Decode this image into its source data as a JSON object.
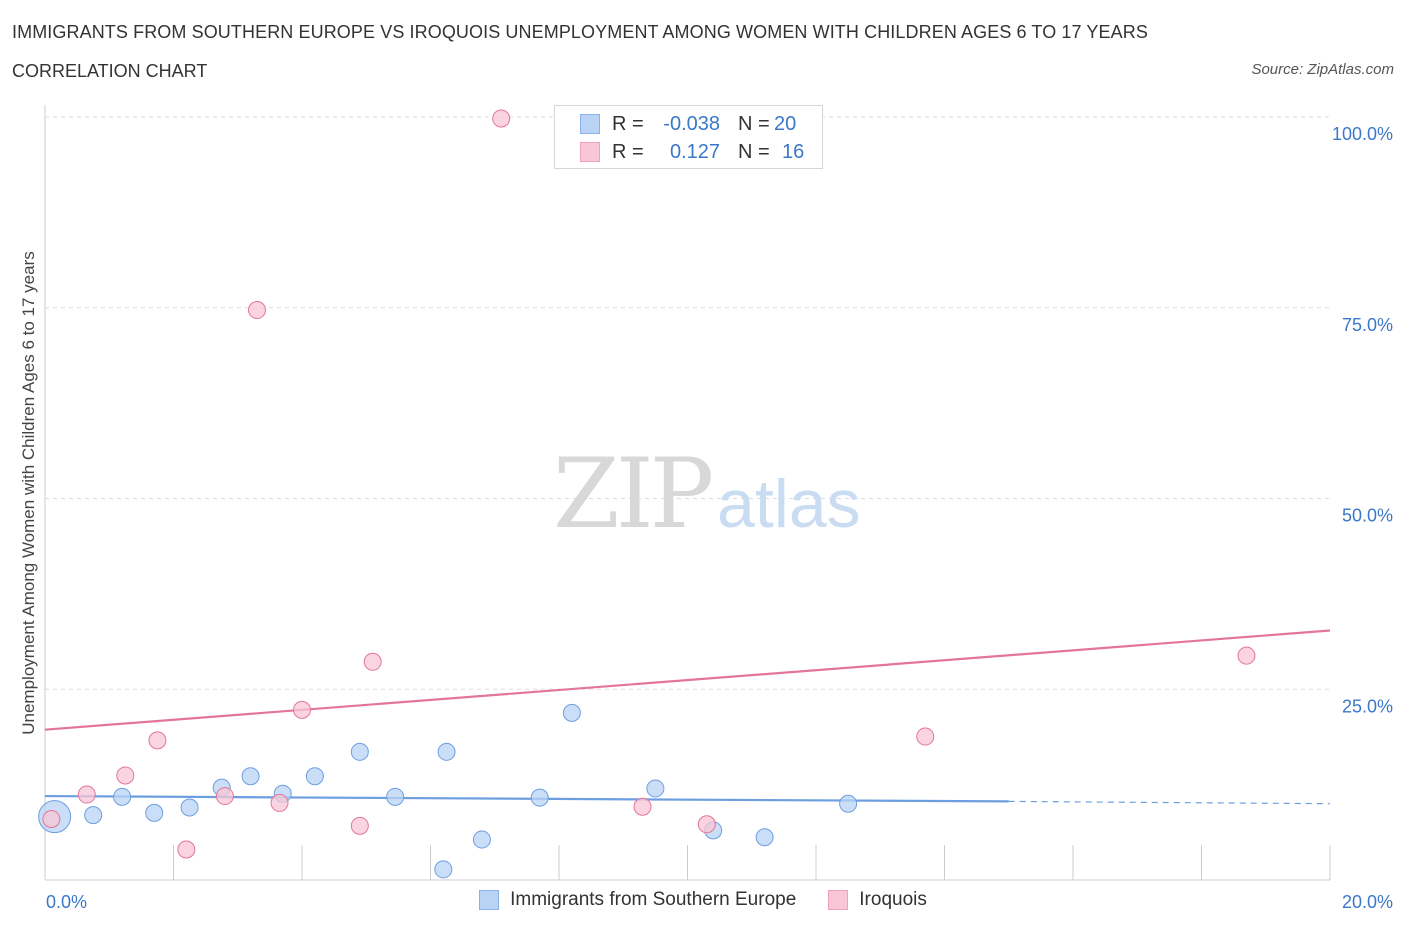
{
  "title": "IMMIGRANTS FROM SOUTHERN EUROPE VS IROQUOIS UNEMPLOYMENT AMONG WOMEN WITH CHILDREN AGES 6 TO 17 YEARS",
  "subtitle": "CORRELATION CHART",
  "source": "Source: ZipAtlas.com",
  "watermark": {
    "zip": "ZIP",
    "atlas": "atlas"
  },
  "legend": {
    "r_label": "R =",
    "n_label": "N =",
    "rows": [
      {
        "r": "-0.038",
        "n": "20",
        "fill": "#b9d3f5",
        "stroke": "#8ab0e6"
      },
      {
        "r": "0.127",
        "n": "16",
        "fill": "#f8c6d6",
        "stroke": "#eea3bb"
      }
    ]
  },
  "chart_data": {
    "type": "scatter",
    "title": "IMMIGRANTS FROM SOUTHERN EUROPE VS IROQUOIS UNEMPLOYMENT AMONG WOMEN WITH CHILDREN AGES 6 TO 17 YEARS",
    "xlabel": "",
    "ylabel": "Unemployment Among Women with Children Ages 6 to 17 years",
    "xlim": [
      0,
      20
    ],
    "ylim": [
      0,
      100
    ],
    "x_tick_labels": [
      "0.0%",
      "20.0%"
    ],
    "y_tick_labels": [
      "100.0%",
      "75.0%",
      "50.0%",
      "25.0%"
    ],
    "y_ticks": [
      100,
      75,
      50,
      25
    ],
    "grid": true,
    "legend_position": "bottom",
    "series": [
      {
        "name": "Immigrants from Southern Europe",
        "color": "#6d9fe0",
        "fill": "#b9d3f5",
        "points": [
          {
            "x": 0.15,
            "y": 8.3,
            "big": true
          },
          {
            "x": 0.75,
            "y": 8.5
          },
          {
            "x": 1.2,
            "y": 10.9
          },
          {
            "x": 1.7,
            "y": 8.8
          },
          {
            "x": 2.25,
            "y": 9.5
          },
          {
            "x": 2.75,
            "y": 12.1
          },
          {
            "x": 3.2,
            "y": 13.6
          },
          {
            "x": 3.7,
            "y": 11.3
          },
          {
            "x": 4.2,
            "y": 13.6
          },
          {
            "x": 4.9,
            "y": 16.8
          },
          {
            "x": 5.45,
            "y": 10.9
          },
          {
            "x": 6.2,
            "y": 1.4
          },
          {
            "x": 6.25,
            "y": 16.8
          },
          {
            "x": 6.8,
            "y": 5.3
          },
          {
            "x": 7.7,
            "y": 10.8
          },
          {
            "x": 8.2,
            "y": 21.9
          },
          {
            "x": 9.5,
            "y": 12.0
          },
          {
            "x": 10.4,
            "y": 6.5
          },
          {
            "x": 11.2,
            "y": 5.6
          },
          {
            "x": 12.5,
            "y": 10.0
          }
        ],
        "trend": {
          "x0": 0,
          "y0": 11.0,
          "x1": 15.0,
          "y1": 10.3,
          "dash_to": 20,
          "dash_y": 10.0
        }
      },
      {
        "name": "Iroquois",
        "color": "#e37599",
        "fill": "#f8c6d6",
        "points": [
          {
            "x": 0.1,
            "y": 8.0
          },
          {
            "x": 0.65,
            "y": 11.2
          },
          {
            "x": 1.25,
            "y": 13.7
          },
          {
            "x": 1.75,
            "y": 18.3
          },
          {
            "x": 2.2,
            "y": 4.0
          },
          {
            "x": 2.8,
            "y": 11.0
          },
          {
            "x": 3.3,
            "y": 74.7
          },
          {
            "x": 3.65,
            "y": 10.1
          },
          {
            "x": 4.0,
            "y": 22.3
          },
          {
            "x": 4.9,
            "y": 7.1
          },
          {
            "x": 5.1,
            "y": 28.6
          },
          {
            "x": 7.1,
            "y": 99.8
          },
          {
            "x": 9.3,
            "y": 9.6
          },
          {
            "x": 10.3,
            "y": 7.3
          },
          {
            "x": 13.7,
            "y": 18.8
          },
          {
            "x": 18.7,
            "y": 29.4
          }
        ],
        "trend": {
          "x0": 0,
          "y0": 19.7,
          "x1": 20,
          "y1": 32.7
        }
      }
    ]
  }
}
